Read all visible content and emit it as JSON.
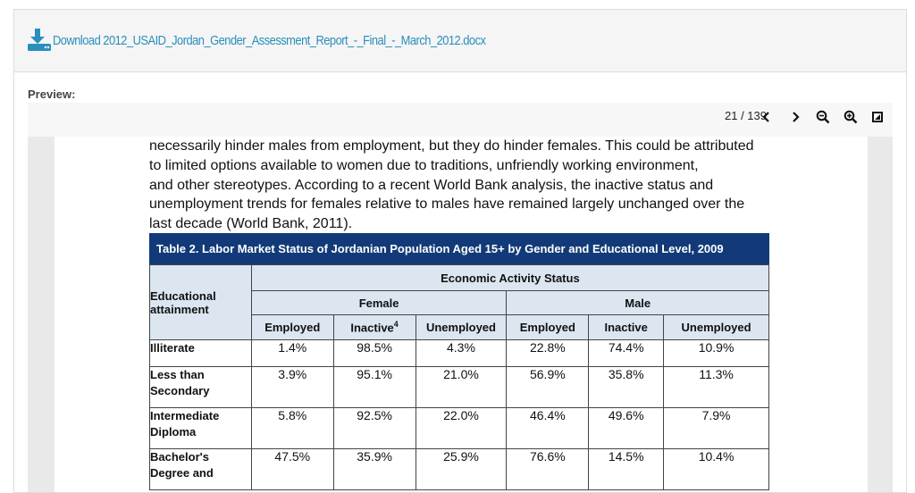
{
  "download": {
    "label": "Download 2012_USAID_Jordan_Gender_Assessment_Report_-_Final_-_March_2012.docx",
    "icon": "download-icon"
  },
  "preview_label": "Preview:",
  "viewer": {
    "current_page": 21,
    "total_pages": 139,
    "page_text": "21 / 139",
    "buttons": [
      "prev-page-icon",
      "next-page-icon",
      "zoom-out-icon",
      "zoom-in-icon",
      "fullscreen-icon"
    ]
  },
  "document": {
    "paragraph": [
      "necessarily hinder males from employment, but they do hinder females. This could be attributed",
      "to limited options available to women due to traditions, unfriendly working environment,",
      "and other stereotypes. According to a recent World Bank analysis, the inactive status and",
      "unemployment trends for females relative to males have remained largely unchanged over the",
      "last decade (World Bank, 2011)."
    ],
    "table": {
      "caption": "Table 2. Labor Market Status of Jordanian Population Aged 15+ by Gender and Educational Level, 2009",
      "corner_header": "Educational attainment",
      "group_header": "Economic Activity Status",
      "female_header": "Female",
      "male_header": "Male",
      "columns": [
        "Employed",
        "Inactive",
        "Unemployed",
        "Employed",
        "Inactive",
        "Unemployed"
      ],
      "inactive_footnote": "4",
      "rows": [
        {
          "label": "Illiterate",
          "values": [
            "1.4%",
            "98.5%",
            "4.3%",
            "22.8%",
            "74.4%",
            "10.9%"
          ]
        },
        {
          "label": "Less than Secondary",
          "values": [
            "3.9%",
            "95.1%",
            "21.0%",
            "56.9%",
            "35.8%",
            "11.3%"
          ]
        },
        {
          "label": "Intermediate Diploma",
          "values": [
            "5.8%",
            "92.5%",
            "22.0%",
            "46.4%",
            "49.6%",
            "7.9%"
          ]
        },
        {
          "label": "Bachelor's Degree and",
          "values": [
            "47.5%",
            "35.9%",
            "25.9%",
            "76.6%",
            "14.5%",
            "10.4%"
          ]
        }
      ]
    }
  },
  "colors": {
    "link": "#2a8fbd",
    "caption_bg": "#123a78",
    "header_bg": "#dbe6f1"
  }
}
